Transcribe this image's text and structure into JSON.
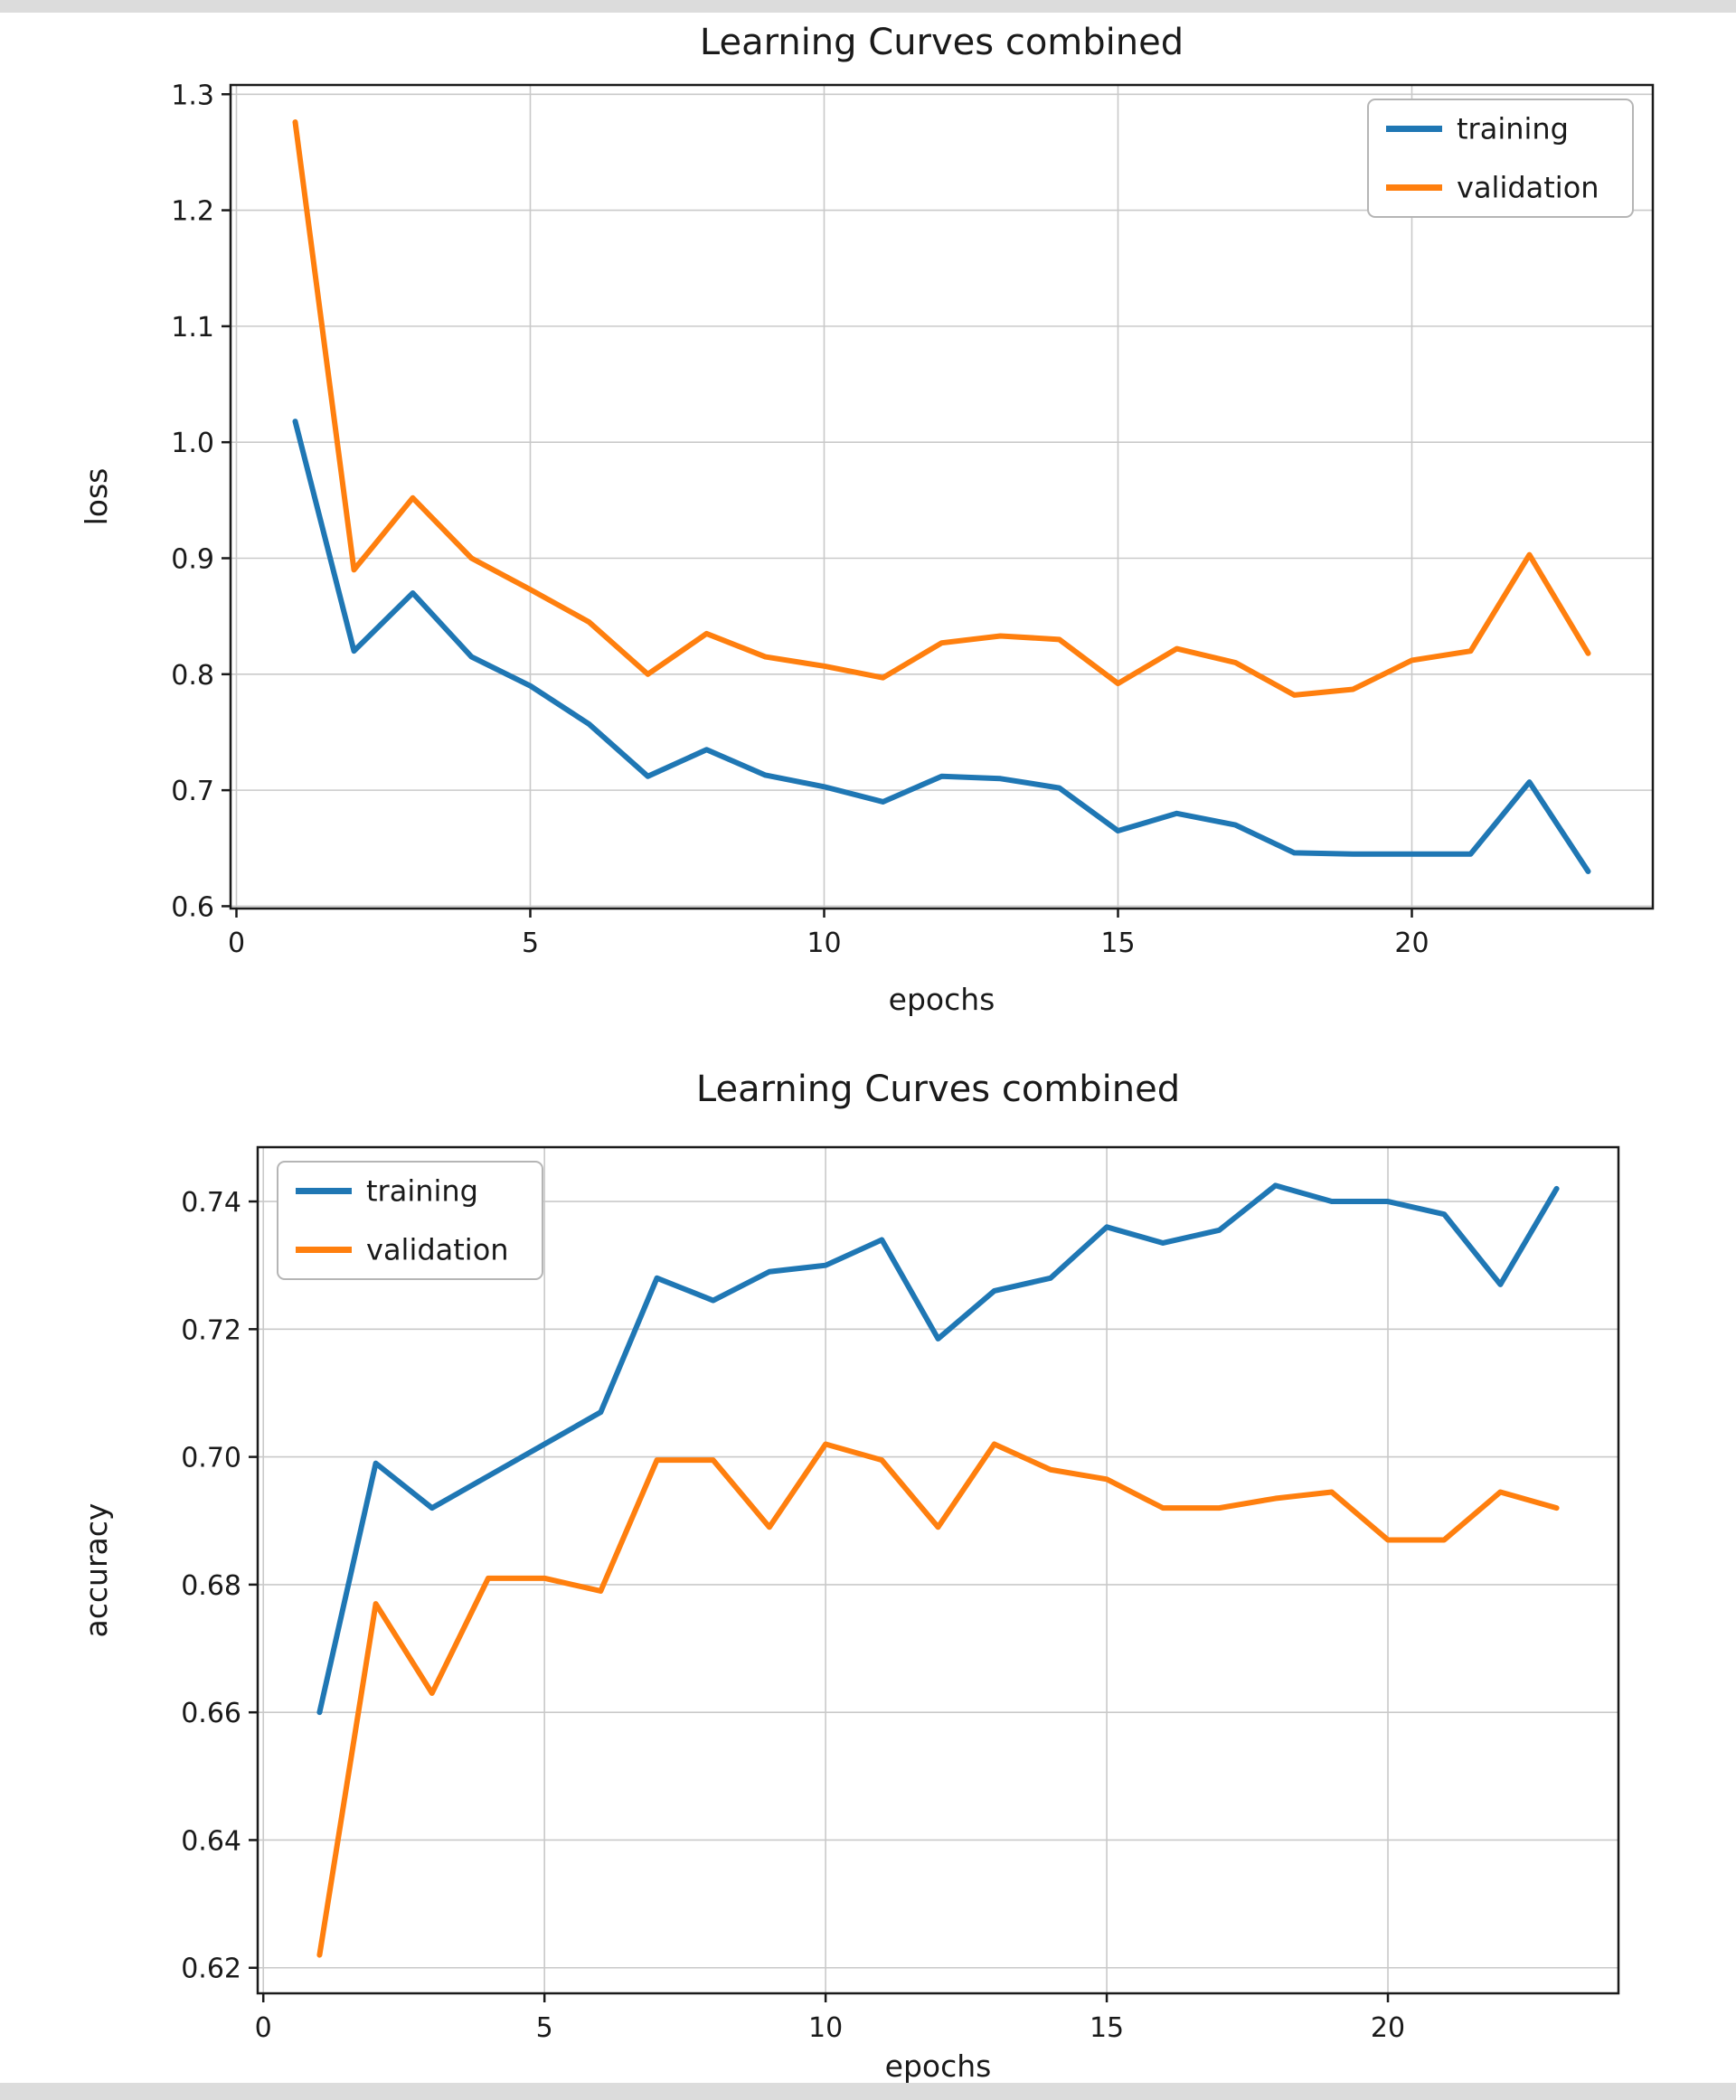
{
  "page": {
    "background": "#ffffff",
    "edge_bar_color": "#dcdcdc",
    "text_color": "#1a1a1a",
    "grid_color": "#c9c9c9"
  },
  "chart_data": [
    {
      "type": "line",
      "title": "Learning Curves combined",
      "xlabel": "epochs",
      "ylabel": "loss",
      "xlim": [
        -0.1,
        24.1
      ],
      "ylim": [
        0.598,
        1.308
      ],
      "xticks": [
        0,
        5,
        10,
        15,
        20
      ],
      "xtick_labels": [
        "0",
        "5",
        "10",
        "15",
        "20"
      ],
      "yticks": [
        0.6,
        0.7,
        0.8,
        0.9,
        1.0,
        1.1,
        1.2,
        1.3
      ],
      "ytick_labels": [
        "0.6",
        "0.7",
        "0.8",
        "0.9",
        "1.0",
        "1.1",
        "1.2",
        "1.3"
      ],
      "grid": true,
      "legend_position": "top-right",
      "x": [
        1,
        2,
        3,
        4,
        5,
        6,
        7,
        8,
        9,
        10,
        11,
        12,
        13,
        14,
        15,
        16,
        17,
        18,
        19,
        20,
        21,
        22,
        23
      ],
      "series": [
        {
          "name": "training",
          "color": "#1f77b4",
          "values": [
            1.018,
            0.82,
            0.87,
            0.815,
            0.79,
            0.757,
            0.712,
            0.735,
            0.713,
            0.703,
            0.69,
            0.712,
            0.71,
            0.702,
            0.665,
            0.68,
            0.67,
            0.646,
            0.645,
            0.645,
            0.645,
            0.707,
            0.63
          ]
        },
        {
          "name": "validation",
          "color": "#ff7f0e",
          "values": [
            1.276,
            0.89,
            0.952,
            0.9,
            0.873,
            0.845,
            0.8,
            0.835,
            0.815,
            0.807,
            0.797,
            0.827,
            0.833,
            0.83,
            0.792,
            0.822,
            0.81,
            0.782,
            0.787,
            0.812,
            0.82,
            0.903,
            0.818
          ]
        }
      ]
    },
    {
      "type": "line",
      "title": "Learning Curves combined",
      "xlabel": "epochs",
      "ylabel": "accuracy",
      "xlim": [
        -0.1,
        24.1
      ],
      "ylim": [
        0.616,
        0.7485
      ],
      "xticks": [
        0,
        5,
        10,
        15,
        20
      ],
      "xtick_labels": [
        "0",
        "5",
        "10",
        "15",
        "20"
      ],
      "yticks": [
        0.62,
        0.64,
        0.66,
        0.68,
        0.7,
        0.72,
        0.74
      ],
      "ytick_labels": [
        "0.62",
        "0.64",
        "0.66",
        "0.68",
        "0.70",
        "0.72",
        "0.74"
      ],
      "grid": true,
      "legend_position": "top-left",
      "x": [
        1,
        2,
        3,
        4,
        5,
        6,
        7,
        8,
        9,
        10,
        11,
        12,
        13,
        14,
        15,
        16,
        17,
        18,
        19,
        20,
        21,
        22,
        23
      ],
      "series": [
        {
          "name": "training",
          "color": "#1f77b4",
          "values": [
            0.66,
            0.699,
            0.692,
            0.697,
            0.702,
            0.707,
            0.728,
            0.7245,
            0.729,
            0.73,
            0.734,
            0.7185,
            0.726,
            0.728,
            0.736,
            0.7335,
            0.7355,
            0.7425,
            0.74,
            0.74,
            0.738,
            0.727,
            0.742
          ]
        },
        {
          "name": "validation",
          "color": "#ff7f0e",
          "values": [
            0.622,
            0.677,
            0.663,
            0.681,
            0.681,
            0.679,
            0.6995,
            0.6995,
            0.689,
            0.702,
            0.6995,
            0.689,
            0.702,
            0.698,
            0.6965,
            0.692,
            0.692,
            0.6935,
            0.6945,
            0.687,
            0.687,
            0.6945,
            0.692
          ]
        }
      ]
    }
  ]
}
